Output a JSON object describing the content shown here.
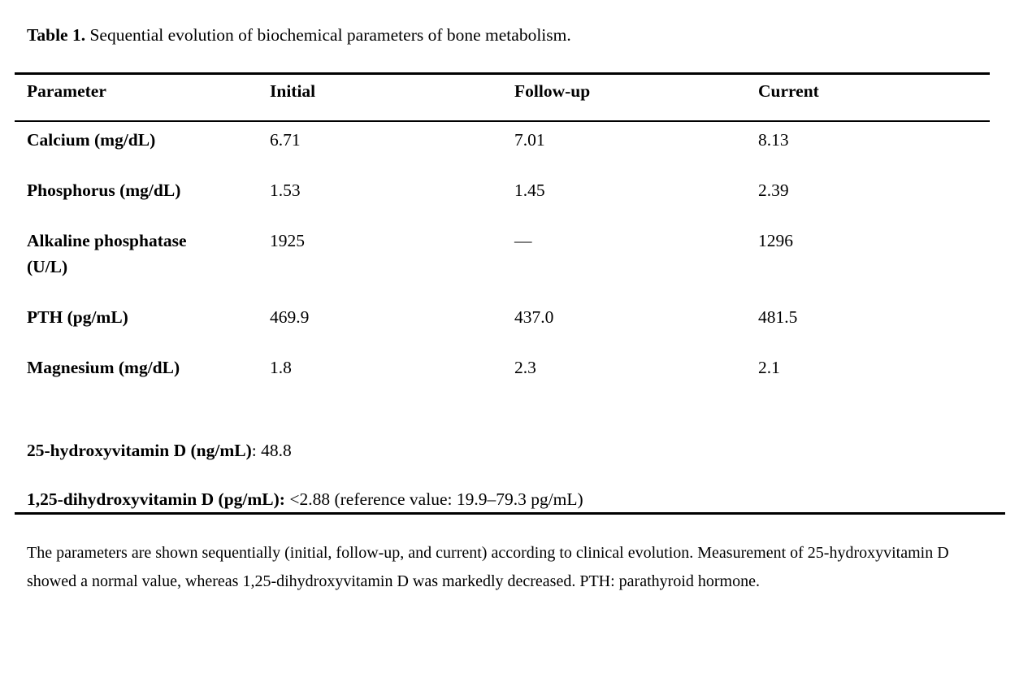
{
  "caption": {
    "label": "Table 1.",
    "text": " Sequential evolution of biochemical parameters of bone metabolism."
  },
  "table": {
    "headers": [
      "Parameter",
      "Initial",
      "Follow-up",
      "Current"
    ],
    "rows": [
      {
        "parameter": "Calcium (mg/dL)",
        "initial": "6.71",
        "follow_up": "7.01",
        "current": "8.13"
      },
      {
        "parameter": "Phosphorus (mg/dL)",
        "initial": "1.53",
        "follow_up": "1.45",
        "current": "2.39"
      },
      {
        "parameter": "Alkaline phosphatase\n(U/L)",
        "initial": "1925",
        "follow_up": "—",
        "current": "1296"
      },
      {
        "parameter": "PTH (pg/mL)",
        "initial": "469.9",
        "follow_up": "437.0",
        "current": "481.5"
      },
      {
        "parameter": "Magnesium (mg/dL)",
        "initial": "1.8",
        "follow_up": "2.3",
        "current": "2.1"
      }
    ]
  },
  "vitamin_results": [
    {
      "label_bold": "25-hydroxyvitamin D (ng/mL)",
      "value_text": ": 48.8"
    },
    {
      "label_bold": "1,25-dihydroxyvitamin D (pg/mL):",
      "value_text": " <2.88 (reference value: 19.9–79.3 pg/mL)"
    }
  ],
  "footnote": "The parameters are shown sequentially (initial, follow-up, and current) according to clinical evolution. Measurement of 25-hydroxyvitamin D showed a normal value, whereas 1,25-dihydroxyvitamin D was markedly decreased. PTH: parathyroid hormone.",
  "colors": {
    "background": "#ffffff",
    "text": "#000000",
    "rule": "#000000"
  }
}
